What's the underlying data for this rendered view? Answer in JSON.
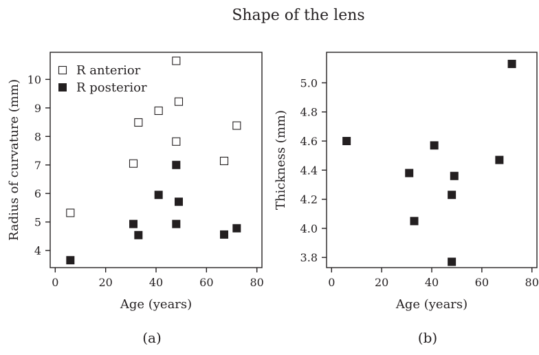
{
  "figure": {
    "title": "Shape of the lens"
  },
  "chart_data": [
    {
      "type": "scatter",
      "panel_label": "(a)",
      "xlabel": "Age (years)",
      "ylabel": "Radius of curvature (mm)",
      "xlim": [
        -2,
        82
      ],
      "ylim": [
        3.4,
        10.95
      ],
      "xticks": [
        0,
        20,
        40,
        60,
        80
      ],
      "yticks": [
        4,
        5,
        6,
        7,
        8,
        9,
        10
      ],
      "grid": false,
      "legend": "top-left",
      "series": [
        {
          "name": "R anterior",
          "marker": "open-square",
          "color": "#231f20",
          "points": [
            {
              "x": 6,
              "y": 5.32
            },
            {
              "x": 31,
              "y": 7.05
            },
            {
              "x": 33,
              "y": 8.49
            },
            {
              "x": 41,
              "y": 8.9
            },
            {
              "x": 48,
              "y": 10.65
            },
            {
              "x": 48,
              "y": 7.82
            },
            {
              "x": 49,
              "y": 9.22
            },
            {
              "x": 67,
              "y": 7.14
            },
            {
              "x": 72,
              "y": 8.38
            }
          ]
        },
        {
          "name": "R posterior",
          "marker": "filled-square",
          "color": "#231f20",
          "points": [
            {
              "x": 6,
              "y": 3.66
            },
            {
              "x": 31,
              "y": 4.93
            },
            {
              "x": 33,
              "y": 4.54
            },
            {
              "x": 41,
              "y": 5.95
            },
            {
              "x": 48,
              "y": 7.0
            },
            {
              "x": 48,
              "y": 4.93
            },
            {
              "x": 49,
              "y": 5.71
            },
            {
              "x": 67,
              "y": 4.56
            },
            {
              "x": 72,
              "y": 4.78
            }
          ]
        }
      ]
    },
    {
      "type": "scatter",
      "panel_label": "(b)",
      "xlabel": "Age (years)",
      "ylabel": "Thickness (mm)",
      "xlim": [
        -2,
        82
      ],
      "ylim": [
        3.73,
        5.21
      ],
      "xticks": [
        0,
        20,
        40,
        60,
        80
      ],
      "yticks": [
        3.8,
        4.0,
        4.2,
        4.4,
        4.6,
        4.8,
        5.0
      ],
      "ytick_labels": [
        "3.8",
        "4.0",
        "4.2",
        "4.4",
        "4.6",
        "4.8",
        "5.0"
      ],
      "grid": false,
      "legend": "none",
      "series": [
        {
          "name": "",
          "marker": "filled-square",
          "color": "#231f20",
          "points": [
            {
              "x": 6,
              "y": 4.6
            },
            {
              "x": 31,
              "y": 4.38
            },
            {
              "x": 33,
              "y": 4.05
            },
            {
              "x": 41,
              "y": 4.57
            },
            {
              "x": 48,
              "y": 4.23
            },
            {
              "x": 48,
              "y": 3.77
            },
            {
              "x": 49,
              "y": 4.36
            },
            {
              "x": 67,
              "y": 4.47
            },
            {
              "x": 72,
              "y": 5.13
            }
          ]
        }
      ]
    }
  ]
}
